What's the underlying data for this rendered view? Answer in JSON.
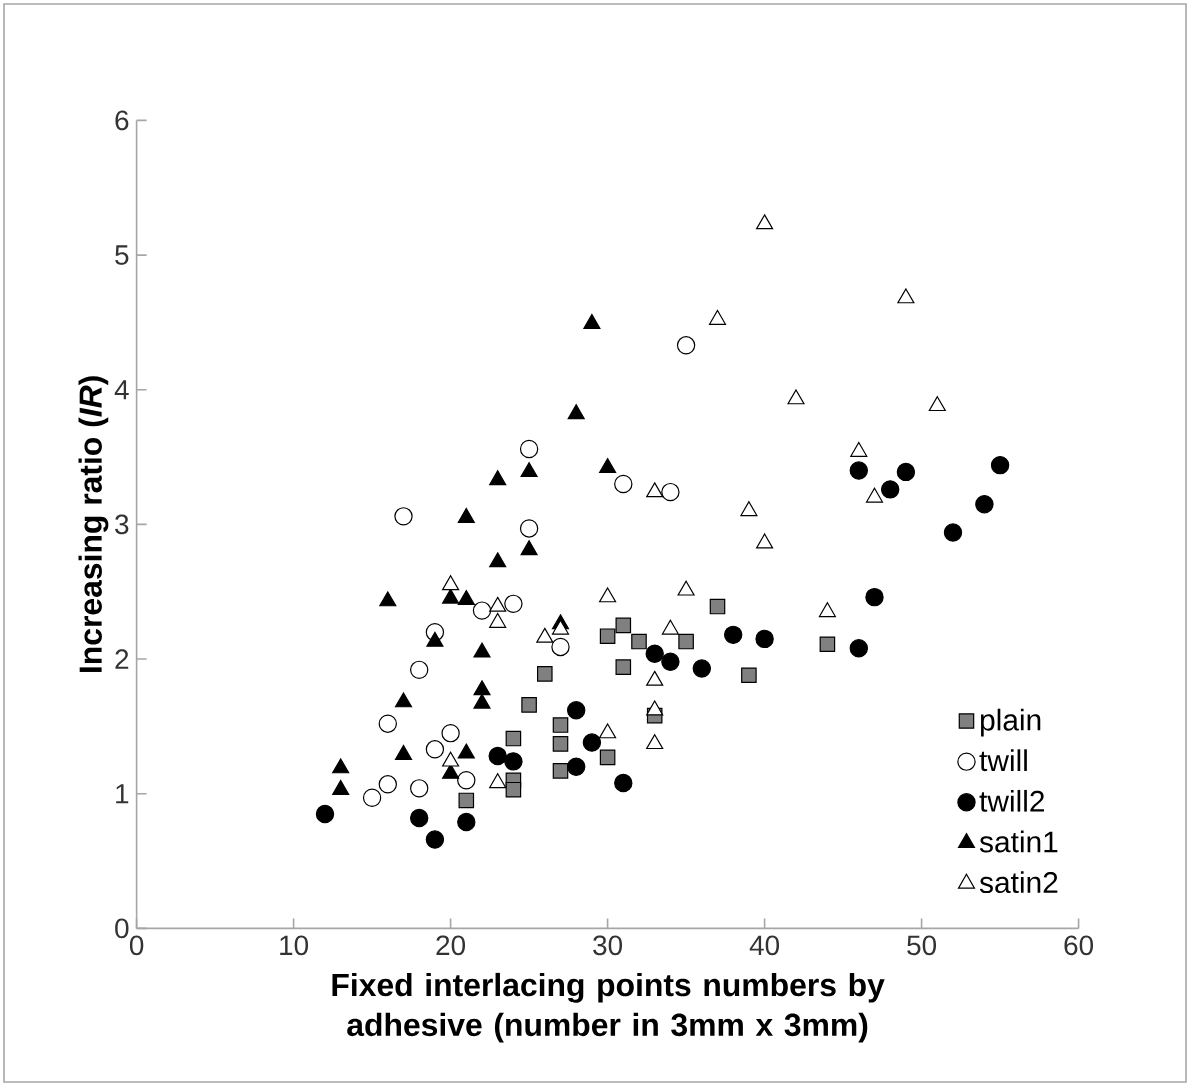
{
  "chart_data": {
    "type": "scatter",
    "xlabel": "Fixed interlacing points numbers by adhesive (number in 3mm x 3mm)",
    "ylabel": "Increasing ratio (*IR*)",
    "xlim": [
      0,
      60
    ],
    "xticks": [
      0,
      10,
      20,
      30,
      40,
      50,
      60
    ],
    "ylim": [
      0,
      6
    ],
    "yticks": [
      0,
      1,
      2,
      3,
      4,
      5,
      6
    ],
    "grid": false,
    "legend": "bottom right",
    "series": [
      {
        "name": "plain",
        "marker": "square",
        "color": "#808080",
        "x": [
          21,
          24,
          24,
          24,
          25,
          26,
          27,
          27,
          27,
          30,
          30,
          31,
          31,
          32,
          33,
          35,
          37,
          39,
          44
        ],
        "values": [
          0.95,
          1.41,
          1.1,
          1.03,
          1.66,
          1.89,
          1.51,
          1.37,
          1.17,
          2.17,
          1.27,
          2.25,
          1.94,
          2.13,
          1.58,
          2.13,
          2.39,
          1.88,
          2.11
        ]
      },
      {
        "name": "twill",
        "marker": "circle",
        "color": "#ffffff",
        "x": [
          15,
          16,
          16,
          17,
          18,
          18,
          19,
          19,
          20,
          21,
          22,
          24,
          25,
          25,
          27,
          31,
          34,
          35
        ],
        "values": [
          0.97,
          1.07,
          1.52,
          3.06,
          1.92,
          1.04,
          2.2,
          1.33,
          1.45,
          1.1,
          2.36,
          2.41,
          3.56,
          2.97,
          2.09,
          3.3,
          3.24,
          4.33
        ]
      },
      {
        "name": "twill2",
        "marker": "circle",
        "color": "#000000",
        "x": [
          12,
          18,
          19,
          21,
          23,
          24,
          28,
          28,
          29,
          31,
          33,
          34,
          36,
          38,
          40,
          46,
          46,
          47,
          48,
          49,
          52,
          54,
          55
        ],
        "values": [
          0.85,
          0.82,
          0.66,
          0.79,
          1.28,
          1.24,
          1.62,
          1.2,
          1.38,
          1.08,
          2.04,
          1.98,
          1.93,
          2.18,
          2.15,
          3.4,
          2.08,
          2.46,
          3.26,
          3.39,
          2.94,
          3.15,
          3.44
        ]
      },
      {
        "name": "satin1",
        "marker": "triangle",
        "color": "#000000",
        "x": [
          13,
          13,
          16,
          17,
          17,
          19,
          20,
          20,
          21,
          21,
          21,
          22,
          22,
          22,
          23,
          23,
          25,
          25,
          27,
          28,
          29,
          30
        ],
        "values": [
          1.19,
          1.03,
          2.43,
          1.68,
          1.29,
          2.13,
          2.45,
          1.15,
          3.05,
          2.44,
          1.3,
          2.05,
          1.77,
          1.67,
          3.33,
          2.72,
          3.39,
          2.81,
          2.26,
          3.82,
          4.49,
          3.42
        ]
      },
      {
        "name": "satin2",
        "marker": "triangle",
        "color": "#ffffff",
        "x": [
          20,
          20,
          23,
          23,
          23,
          26,
          27,
          30,
          30,
          33,
          33,
          33,
          33,
          34,
          35,
          37,
          39,
          40,
          40,
          42,
          44,
          46,
          47,
          49,
          51
        ],
        "values": [
          2.55,
          1.24,
          2.39,
          2.27,
          1.08,
          2.16,
          2.22,
          2.46,
          1.45,
          3.24,
          1.84,
          1.62,
          1.37,
          2.22,
          2.51,
          4.52,
          3.1,
          2.86,
          5.23,
          3.93,
          2.35,
          3.54,
          3.2,
          4.68,
          3.88
        ]
      }
    ]
  }
}
